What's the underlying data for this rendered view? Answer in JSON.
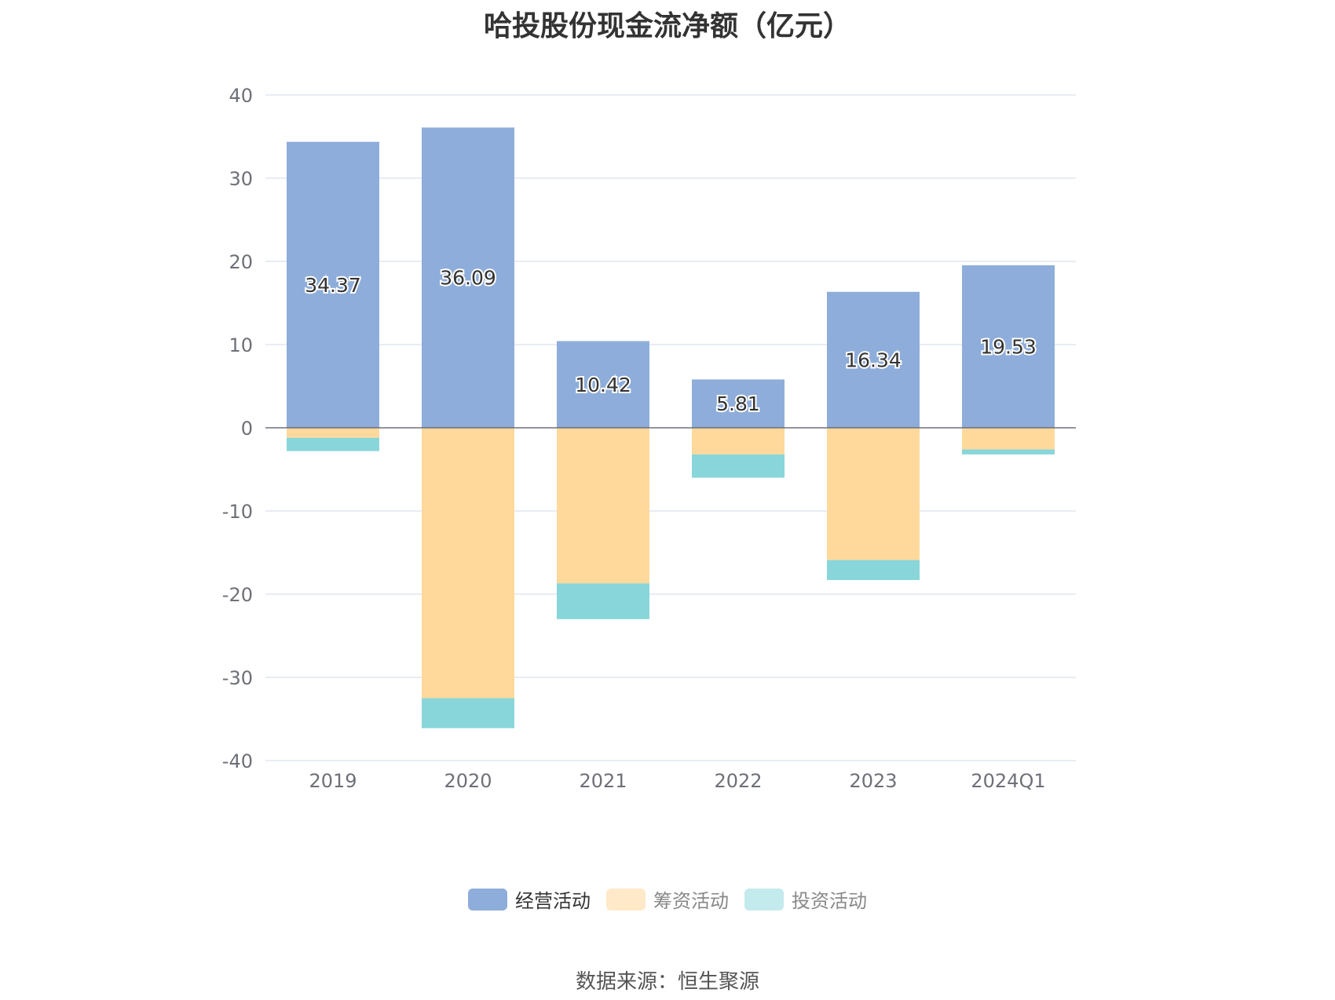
{
  "title": "哈投股份现金流净额（亿元）",
  "source": "数据来源：恒生聚源",
  "colors": {
    "operating": "#8EADDA",
    "financing": "#FFD99B",
    "investing": "#88D6DA",
    "legend_financing": "#FFE9C8",
    "legend_investing": "#C3EAEC",
    "grid": "#E0E6F1",
    "zero_line": "#6E7079",
    "tick_text": "#6E7079"
  },
  "legend": [
    {
      "label": "经营活动",
      "color": "#8EADDA",
      "text_color": "#333333"
    },
    {
      "label": "筹资活动",
      "color": "#FFE9C8",
      "text_color": "#888888"
    },
    {
      "label": "投资活动",
      "color": "#C3EAEC",
      "text_color": "#888888"
    }
  ],
  "chart_data": {
    "type": "bar",
    "stacked": true,
    "categories": [
      "2019",
      "2020",
      "2021",
      "2022",
      "2023",
      "2024Q1"
    ],
    "series": [
      {
        "name": "经营活动",
        "values": [
          34.37,
          36.09,
          10.42,
          5.81,
          16.34,
          19.53
        ],
        "show_labels": true
      },
      {
        "name": "筹资活动",
        "values": [
          -1.2,
          -32.5,
          -18.7,
          -3.2,
          -15.9,
          -2.6
        ],
        "show_labels": false
      },
      {
        "name": "投资活动",
        "values": [
          -1.6,
          -3.6,
          -4.3,
          -2.8,
          -2.4,
          -0.6
        ],
        "show_labels": false
      }
    ],
    "data_labels": [
      "34.37",
      "36.09",
      "10.42",
      "5.81",
      "16.34",
      "19.53"
    ],
    "ylim": [
      -40,
      40
    ],
    "yticks": [
      "40",
      "30",
      "20",
      "10",
      "0",
      "-10",
      "-20",
      "-30",
      "-40"
    ],
    "grid": true,
    "legend_position": "bottom"
  }
}
